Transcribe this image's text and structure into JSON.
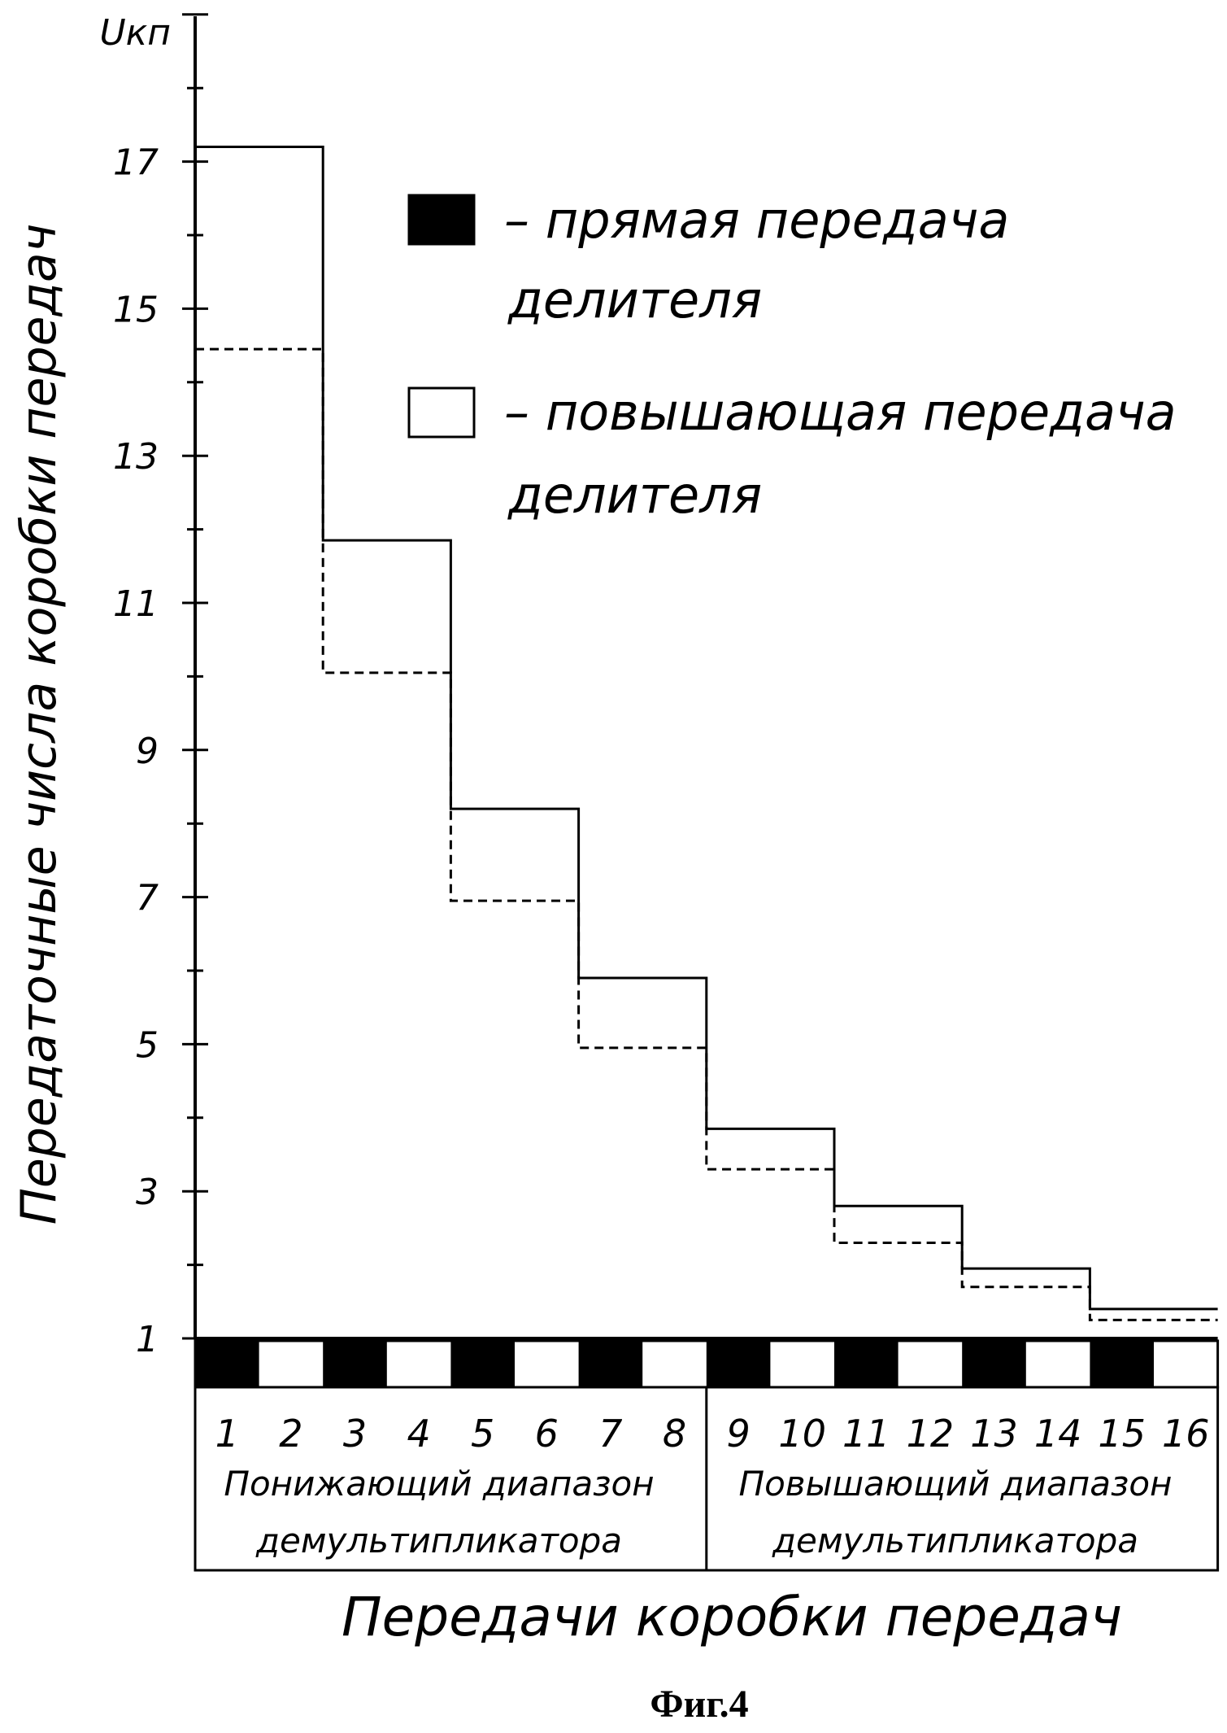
{
  "chart_data": {
    "type": "line",
    "step": true,
    "title": "",
    "ylabel_top": "Uкп",
    "ylabel": "Передаточные числа коробки передач",
    "xlabel": "Передачи коробки передач",
    "figure_label": "Фиг.4",
    "ylim": [
      1,
      19
    ],
    "yticks": [
      "17",
      "15",
      "13",
      "11",
      "9",
      "7",
      "5",
      "3",
      "1"
    ],
    "categories": [
      "1",
      "2",
      "3",
      "4",
      "5",
      "6",
      "7",
      "8",
      "9",
      "10",
      "11",
      "12",
      "13",
      "14",
      "15",
      "16"
    ],
    "range_groups": [
      {
        "label_line1": "Понижающий диапазон",
        "label_line2": "демультипликатора",
        "from": 1,
        "to": 8
      },
      {
        "label_line1": "Повышающий диапазон",
        "label_line2": "демультипликатора",
        "from": 9,
        "to": 16
      }
    ],
    "legend": {
      "placement": "top-right",
      "items": [
        {
          "swatch": "filled",
          "label_line1": "– прямая передача",
          "label_line2": "делителя"
        },
        {
          "swatch": "empty",
          "label_line1": "– повышающая передача",
          "label_line2": "делителя"
        }
      ]
    },
    "series": [
      {
        "style": "solid",
        "steps": [
          [
            1,
            3,
            17.2
          ],
          [
            3,
            5,
            11.85
          ],
          [
            5,
            7,
            8.2
          ],
          [
            7,
            9,
            5.9
          ],
          [
            9,
            11,
            3.85
          ],
          [
            11,
            13,
            2.8
          ],
          [
            13,
            15,
            1.95
          ],
          [
            15,
            17,
            1.4
          ]
        ]
      },
      {
        "style": "dashed",
        "steps": [
          [
            1,
            3,
            14.45
          ],
          [
            3,
            5,
            10.05
          ],
          [
            5,
            7,
            6.95
          ],
          [
            7,
            9,
            4.95
          ],
          [
            9,
            11,
            3.3
          ],
          [
            11,
            13,
            2.3
          ],
          [
            13,
            15,
            1.7
          ],
          [
            15,
            17,
            1.25
          ]
        ]
      }
    ],
    "strip_pattern": [
      "filled",
      "empty",
      "filled",
      "empty",
      "filled",
      "empty",
      "filled",
      "empty",
      "filled",
      "empty",
      "filled",
      "empty",
      "filled",
      "empty",
      "filled",
      "empty"
    ],
    "colors": {
      "ink": "#000000",
      "paper": "#ffffff"
    }
  }
}
